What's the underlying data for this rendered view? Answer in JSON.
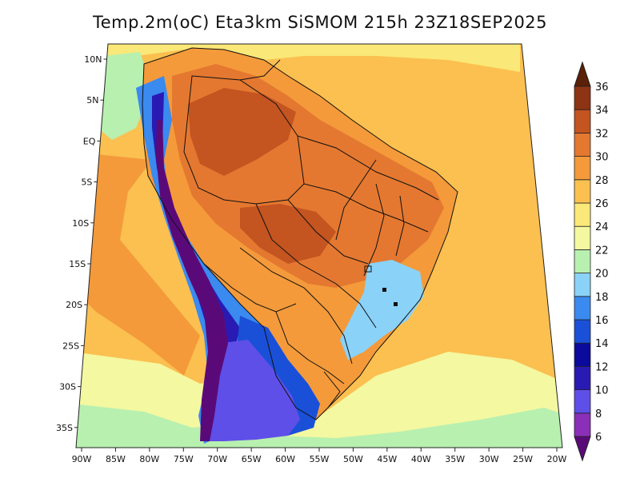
{
  "title": "Temp.2m(oC) Eta3km SiSMOM 215h 23Z18SEP2025",
  "map": {
    "variable": "2 m air temperature",
    "units": "oC",
    "lat_labels": [
      {
        "value": 10,
        "label": "10N"
      },
      {
        "value": 5,
        "label": "5N"
      },
      {
        "value": 0,
        "label": "EQ"
      },
      {
        "value": -5,
        "label": "5S"
      },
      {
        "value": -10,
        "label": "10S"
      },
      {
        "value": -15,
        "label": "15S"
      },
      {
        "value": -20,
        "label": "20S"
      },
      {
        "value": -25,
        "label": "25S"
      },
      {
        "value": -30,
        "label": "30S"
      },
      {
        "value": -35,
        "label": "35S"
      }
    ],
    "lon_labels": [
      {
        "value": -90,
        "label": "90W"
      },
      {
        "value": -85,
        "label": "85W"
      },
      {
        "value": -80,
        "label": "80W"
      },
      {
        "value": -75,
        "label": "75W"
      },
      {
        "value": -70,
        "label": "70W"
      },
      {
        "value": -65,
        "label": "65W"
      },
      {
        "value": -60,
        "label": "60W"
      },
      {
        "value": -55,
        "label": "55W"
      },
      {
        "value": -50,
        "label": "50W"
      },
      {
        "value": -45,
        "label": "45W"
      },
      {
        "value": -40,
        "label": "40W"
      },
      {
        "value": -35,
        "label": "35W"
      },
      {
        "value": -30,
        "label": "30W"
      },
      {
        "value": -25,
        "label": "25W"
      },
      {
        "value": -20,
        "label": "20W"
      }
    ]
  },
  "colorbar": {
    "levels": [
      {
        "value": 6,
        "label": "6"
      },
      {
        "value": 8,
        "label": "8"
      },
      {
        "value": 10,
        "label": "10"
      },
      {
        "value": 12,
        "label": "12"
      },
      {
        "value": 14,
        "label": "14"
      },
      {
        "value": 16,
        "label": "16"
      },
      {
        "value": 18,
        "label": "18"
      },
      {
        "value": 20,
        "label": "20"
      },
      {
        "value": 22,
        "label": "22"
      },
      {
        "value": 24,
        "label": "24"
      },
      {
        "value": 26,
        "label": "26"
      },
      {
        "value": 28,
        "label": "28"
      },
      {
        "value": 30,
        "label": "30"
      },
      {
        "value": 32,
        "label": "32"
      },
      {
        "value": 34,
        "label": "34"
      },
      {
        "value": 36,
        "label": "36"
      }
    ],
    "colors": [
      "#5a0a78",
      "#8b2fb8",
      "#5e4fe8",
      "#2a1ab4",
      "#0a0a9c",
      "#1a50d8",
      "#3a8af0",
      "#8ad2f8",
      "#b8f0b0",
      "#f4f8a0",
      "#fae878",
      "#fbc050",
      "#f49a3a",
      "#e47830",
      "#c45420",
      "#8c3414",
      "#5a2008"
    ],
    "under_color": "#5a0a78",
    "over_color": "#5a2008"
  },
  "zones": {
    "ocean_tropical": "#fbc050",
    "ocean_north": "#fae878",
    "ocean_south": "#f4f8a0",
    "ocean_cold": "#b8f0b0",
    "pacific_warm": "#f49a3a",
    "land_hot": "#e47830",
    "land_very_hot": "#c45420",
    "land_warm": "#f49a3a",
    "andes_mid": "#3a8af0",
    "andes_high": "#2a1ab4",
    "andes_peak": "#5a0a78",
    "patagonia": "#5e4fe8",
    "south_cool": "#1a50d8",
    "highlands_br": "#8ad2f8",
    "border_line": "#111111"
  }
}
